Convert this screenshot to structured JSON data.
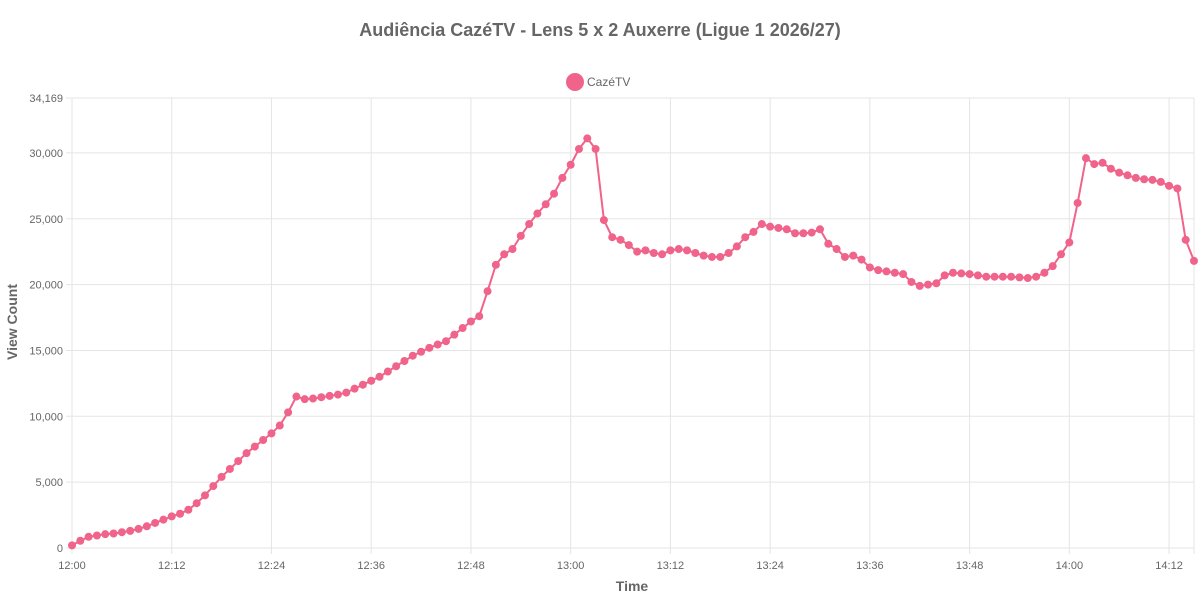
{
  "chart_data": {
    "type": "line",
    "title": "Audiência CazéTV - Lens 5 x 2 Auxerre (Ligue 1 2026/27)",
    "xlabel": "Time",
    "ylabel": "View Count",
    "ylim": [
      0,
      34169
    ],
    "y_ticks": [
      0,
      5000,
      10000,
      15000,
      20000,
      25000,
      30000,
      34169
    ],
    "y_tick_labels": [
      "0",
      "5,000",
      "10,000",
      "15,000",
      "20,000",
      "25,000",
      "30,000",
      "34,169"
    ],
    "x_tick_labels": [
      "12:00",
      "12:12",
      "12:24",
      "12:36",
      "12:48",
      "13:00",
      "13:12",
      "13:24",
      "13:36",
      "13:48",
      "14:00",
      "14:12"
    ],
    "x_start": "12:00",
    "x_end": "14:15",
    "grid": true,
    "legend_position": "top",
    "series": [
      {
        "name": "CazéTV",
        "color": "#f0638a",
        "values": [
          200,
          550,
          850,
          950,
          1050,
          1100,
          1200,
          1300,
          1450,
          1650,
          1900,
          2150,
          2400,
          2600,
          2900,
          3400,
          4000,
          4700,
          5400,
          6000,
          6600,
          7200,
          7700,
          8200,
          8700,
          9300,
          10300,
          11500,
          11300,
          11350,
          11450,
          11550,
          11650,
          11800,
          12100,
          12400,
          12700,
          13000,
          13400,
          13800,
          14200,
          14600,
          14900,
          15200,
          15450,
          15700,
          16200,
          16700,
          17200,
          17600,
          19500,
          21500,
          22300,
          22700,
          23700,
          24600,
          25400,
          26100,
          26900,
          28100,
          29100,
          30300,
          31100,
          30300,
          24900,
          23600,
          23400,
          23000,
          22500,
          22600,
          22400,
          22300,
          22600,
          22700,
          22600,
          22400,
          22200,
          22100,
          22100,
          22400,
          22900,
          23600,
          24000,
          24600,
          24400,
          24300,
          24200,
          23900,
          23900,
          23950,
          24200,
          23100,
          22700,
          22100,
          22200,
          21900,
          21300,
          21100,
          21000,
          20900,
          20800,
          20200,
          19900,
          20000,
          20100,
          20700,
          20900,
          20850,
          20800,
          20700,
          20600,
          20600,
          20600,
          20600,
          20550,
          20500,
          20600,
          20900,
          21400,
          22300,
          23200,
          26200,
          29600,
          29150,
          29250,
          28800,
          28500,
          28300,
          28100,
          28000,
          27950,
          27800,
          27500,
          27300,
          23400,
          21800
        ]
      }
    ]
  }
}
